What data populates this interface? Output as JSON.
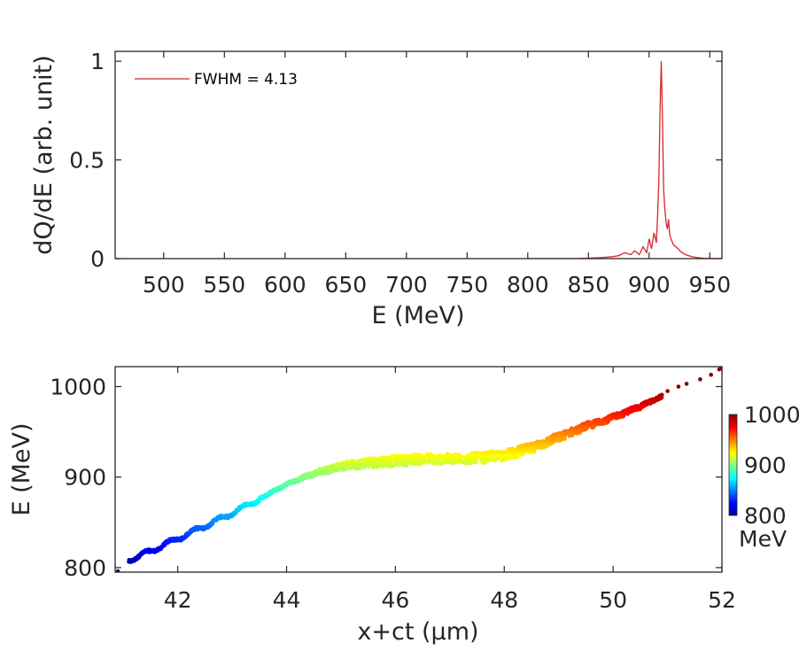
{
  "colors": {
    "axis": "#262626",
    "spectrum_line": "#d62728",
    "colormap": [
      "#00008f",
      "#0000ff",
      "#00ffff",
      "#ffff00",
      "#ff0000",
      "#800000"
    ]
  },
  "chart_data": [
    {
      "type": "line",
      "name": "energy-spectrum",
      "xlabel": "E (MeV)",
      "ylabel": "dQ/dE (arb. unit)",
      "xlim": [
        460,
        960
      ],
      "ylim": [
        0,
        1.05
      ],
      "xticks": [
        500,
        550,
        600,
        650,
        700,
        750,
        800,
        850,
        900,
        950
      ],
      "xtick_labels": [
        "500",
        "550",
        "600",
        "650",
        "700",
        "750",
        "800",
        "850",
        "900",
        "950"
      ],
      "yticks": [
        0,
        0.5,
        1
      ],
      "ytick_labels": [
        "0",
        "0.5",
        "1"
      ],
      "legend": {
        "label": "FWHM = 4.13",
        "placement": "top-left"
      },
      "series": [
        {
          "name": "FWHM = 4.13",
          "x": [
            800,
            840,
            860,
            870,
            875,
            880,
            885,
            888,
            892,
            895,
            898,
            900,
            902,
            904,
            906,
            907,
            908,
            909,
            910,
            911,
            912,
            913,
            914,
            915,
            916,
            917,
            918,
            920,
            922,
            924,
            926,
            930,
            935,
            940,
            945,
            950,
            955,
            960
          ],
          "y": [
            0.0,
            0.0,
            0.005,
            0.01,
            0.015,
            0.03,
            0.02,
            0.04,
            0.02,
            0.06,
            0.03,
            0.1,
            0.05,
            0.13,
            0.08,
            0.22,
            0.4,
            0.75,
            1.0,
            0.7,
            0.35,
            0.25,
            0.18,
            0.15,
            0.2,
            0.12,
            0.1,
            0.07,
            0.06,
            0.05,
            0.035,
            0.02,
            0.01,
            0.005,
            0.002,
            0.001,
            0.0,
            0.0
          ]
        }
      ]
    },
    {
      "type": "scatter",
      "name": "longitudinal-phase-space",
      "xlabel": "x+ct (μm)",
      "ylabel": "E (MeV)",
      "xlim": [
        40.85,
        52
      ],
      "ylim": [
        795,
        1022
      ],
      "xticks": [
        42,
        44,
        46,
        48,
        50,
        52
      ],
      "xtick_labels": [
        "42",
        "44",
        "46",
        "48",
        "50",
        "52"
      ],
      "yticks": [
        800,
        900,
        1000
      ],
      "ytick_labels": [
        "800",
        "900",
        "1000"
      ],
      "centerline": {
        "x": [
          41.1,
          41.5,
          42.0,
          42.5,
          43.0,
          43.5,
          44.0,
          44.5,
          45.0,
          45.5,
          46.0,
          46.5,
          47.0,
          47.5,
          48.0,
          48.5,
          49.0,
          49.5,
          50.0,
          50.5,
          51.0,
          51.5,
          52.0
        ],
        "y": [
          808,
          818,
          832,
          846,
          860,
          876,
          892,
          904,
          912,
          916,
          918,
          920,
          920,
          921,
          924,
          932,
          944,
          956,
          966,
          978,
          992,
          1005,
          1020
        ]
      },
      "colorbar": {
        "range": [
          800,
          1000
        ],
        "ticks": [
          800,
          900,
          1000
        ],
        "tick_labels": [
          "800",
          "900",
          "1000"
        ],
        "unit": "MeV"
      }
    }
  ]
}
